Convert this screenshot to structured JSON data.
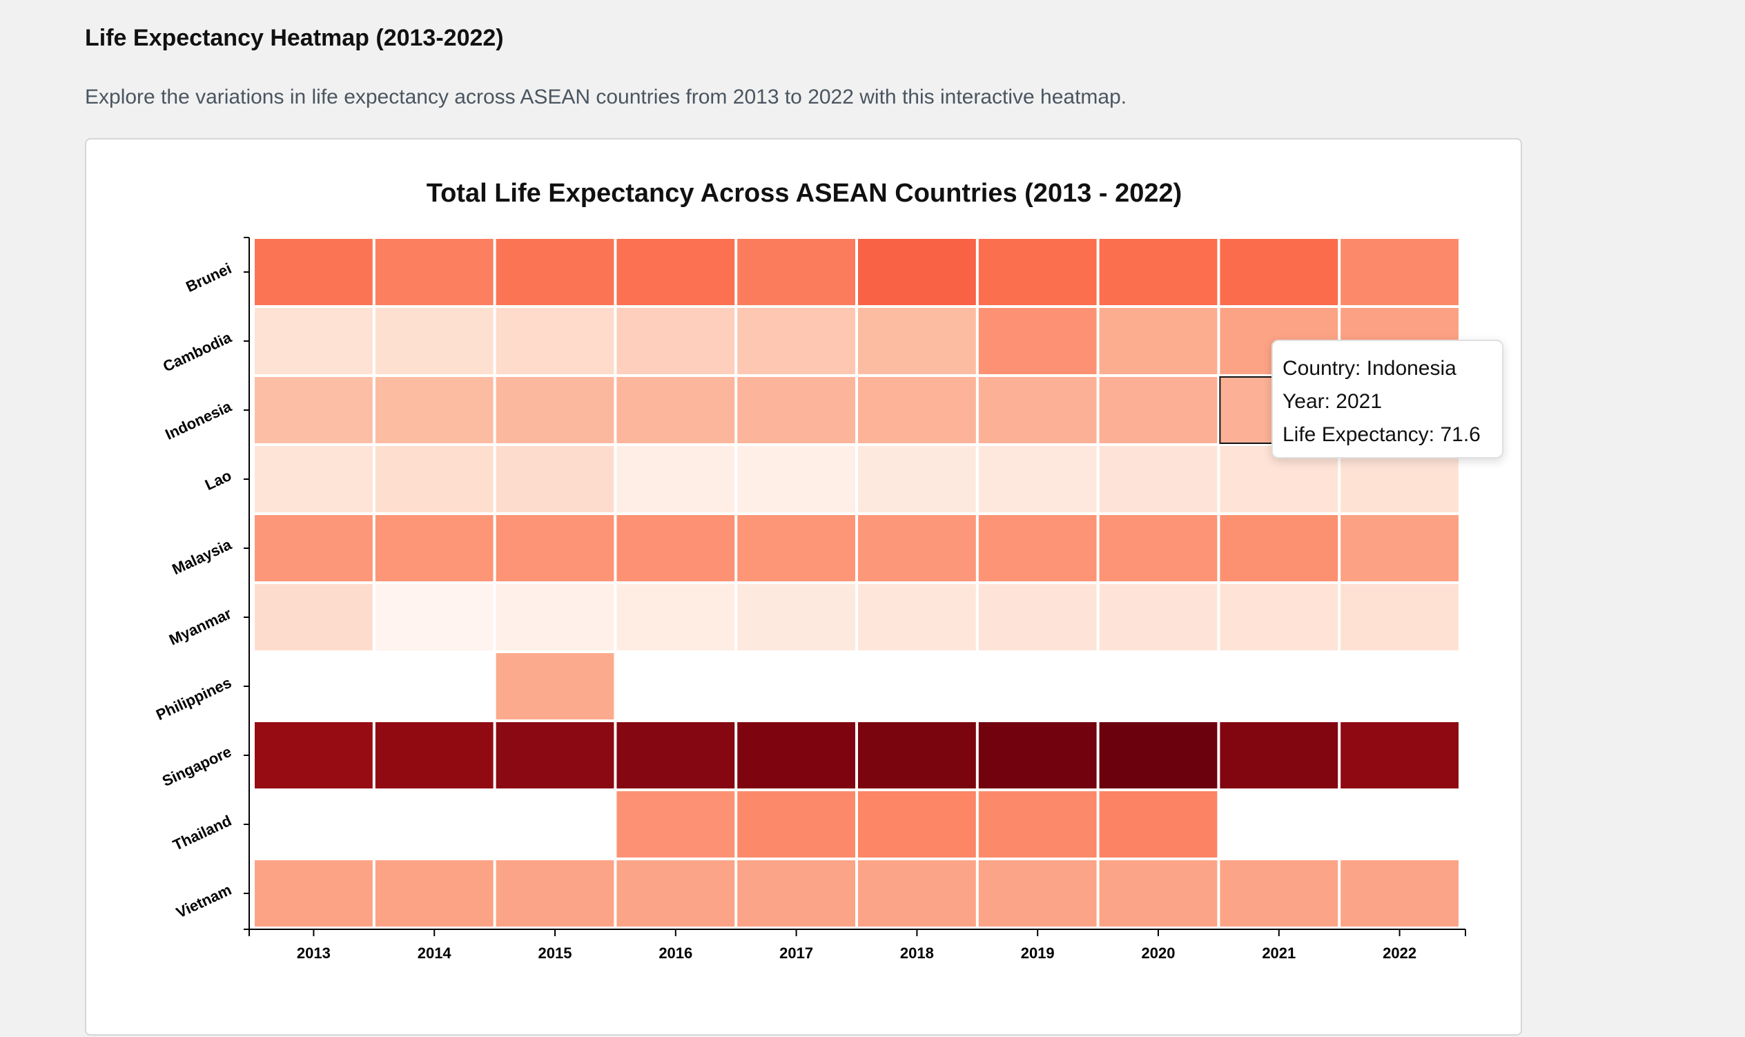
{
  "page": {
    "title": "Life Expectancy Heatmap (2013-2022)",
    "description": "Explore the variations in life expectancy across ASEAN countries from 2013 to 2022 with this interactive heatmap."
  },
  "tooltip": {
    "country_label": "Country:",
    "country": "Indonesia",
    "year_label": "Year:",
    "year": "2021",
    "value_label": "Life Expectancy:",
    "value": "71.6"
  },
  "colors": {
    "scale_low": "#fff5f0",
    "scale_high": "#67000d",
    "missing": "#ffffff",
    "highlight_stroke": "#111111"
  },
  "chart_data": {
    "type": "heatmap",
    "title": "Total Life Expectancy Across ASEAN Countries (2013 - 2022)",
    "xlabel": "",
    "ylabel": "",
    "x": [
      "2013",
      "2014",
      "2015",
      "2016",
      "2017",
      "2018",
      "2019",
      "2020",
      "2021",
      "2022"
    ],
    "y": [
      "Brunei",
      "Cambodia",
      "Indonesia",
      "Lao",
      "Malaysia",
      "Myanmar",
      "Philippines",
      "Singapore",
      "Thailand",
      "Vietnam"
    ],
    "color_scale": "Reds",
    "value_range": [
      66.5,
      84.0
    ],
    "values": [
      [
        75.0,
        74.4,
        75.0,
        75.2,
        74.6,
        76.0,
        75.3,
        75.4,
        75.5,
        73.8
      ],
      [
        68.6,
        68.8,
        69.1,
        69.8,
        70.3,
        71.0,
        73.3,
        71.9,
        72.4,
        72.5
      ],
      [
        70.8,
        71.0,
        71.2,
        71.3,
        71.4,
        71.5,
        71.6,
        71.7,
        71.6,
        71.8
      ],
      [
        68.4,
        68.9,
        69.0,
        67.3,
        67.2,
        67.8,
        67.9,
        68.3,
        68.5,
        68.6
      ],
      [
        73.0,
        73.1,
        73.2,
        73.3,
        73.1,
        73.0,
        73.2,
        73.2,
        73.4,
        72.5
      ],
      [
        69.0,
        66.6,
        67.0,
        67.4,
        67.8,
        68.1,
        68.3,
        68.3,
        68.5,
        68.7
      ],
      [
        null,
        null,
        72.0,
        null,
        null,
        null,
        null,
        null,
        null,
        null
      ],
      [
        82.5,
        82.7,
        82.9,
        83.1,
        83.3,
        83.4,
        83.7,
        83.9,
        83.2,
        82.8
      ],
      [
        null,
        null,
        null,
        73.3,
        73.8,
        74.0,
        73.8,
        74.2,
        null,
        null
      ],
      [
        72.4,
        72.4,
        72.3,
        72.3,
        72.3,
        72.3,
        72.3,
        72.3,
        72.3,
        72.3
      ]
    ],
    "highlighted_cell": {
      "country": "Indonesia",
      "year": "2021"
    },
    "legend": "none",
    "grid": false
  }
}
